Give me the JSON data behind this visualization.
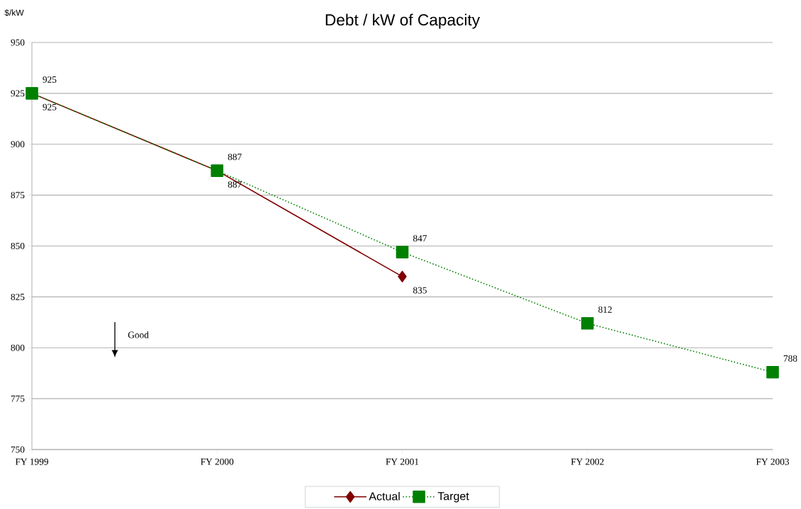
{
  "chart_data": {
    "type": "line",
    "title": "Debt / kW of Capacity",
    "ylabel": "$/kW",
    "categories": [
      "FY 1999",
      "FY 2000",
      "FY 2001",
      "FY 2002",
      "FY 2003"
    ],
    "series": [
      {
        "name": "Actual",
        "color": "#800000",
        "marker": "diamond",
        "line_style": "solid",
        "values": [
          925,
          887,
          835,
          null,
          null
        ]
      },
      {
        "name": "Target",
        "color": "#008000",
        "marker": "square",
        "line_style": "dotted",
        "values": [
          925,
          887,
          847,
          812,
          788
        ]
      }
    ],
    "ylim": [
      750,
      950
    ],
    "yticks": [
      750,
      775,
      800,
      825,
      850,
      875,
      900,
      925,
      950
    ],
    "grid": "y",
    "legend": "bottom",
    "data_labels": true,
    "annotations": [
      "Good"
    ]
  }
}
